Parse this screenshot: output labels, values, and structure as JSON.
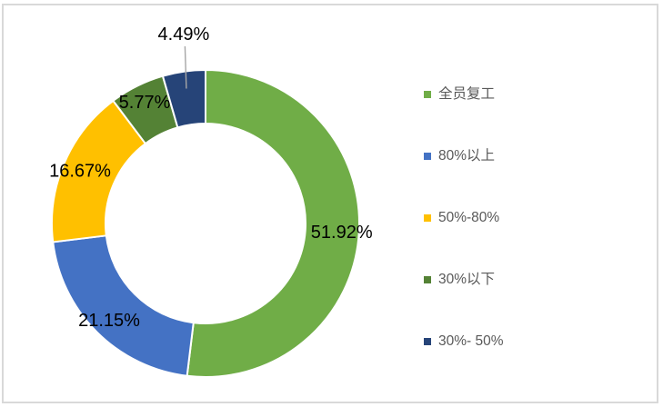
{
  "chart_frame": {
    "border_color": "#D9D9D9",
    "background_color": "#FFFFFF"
  },
  "chart_data": {
    "type": "pie",
    "subtype": "donut",
    "title": "",
    "legend_position": "right",
    "direction": "clockwise",
    "start_angle_deg": 0,
    "donut_hole_ratio": 0.65,
    "label_color": "#000000",
    "leader_line_color": "#A6A6A6",
    "legend_text_color": "#595959",
    "slices": [
      {
        "label": "全员复工",
        "value": 51.92,
        "display": "51.92%",
        "color": "#70AD47",
        "label_placement": "inside"
      },
      {
        "label": "80%以上",
        "value": 21.15,
        "display": "21.15%",
        "color": "#4472C4",
        "label_placement": "inside"
      },
      {
        "label": "50%-80%",
        "value": 16.67,
        "display": "16.67%",
        "color": "#FFC000",
        "label_placement": "inside"
      },
      {
        "label": "30%以下",
        "value": 5.77,
        "display": "5.77%",
        "color": "#548235",
        "label_placement": "inside"
      },
      {
        "label": "30%- 50%",
        "value": 4.49,
        "display": "4.49%",
        "color": "#264478",
        "label_placement": "outside-top"
      }
    ]
  }
}
